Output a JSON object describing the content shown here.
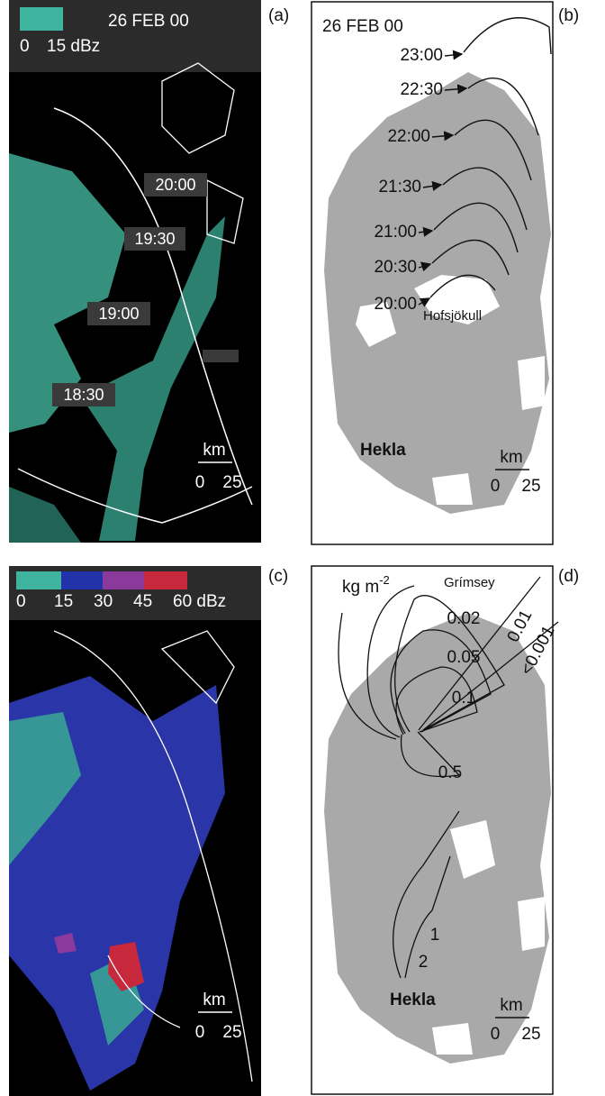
{
  "panels": [
    {
      "label": "(a)",
      "date": "26 FEB 00",
      "legend": [
        "0",
        "15 dBz"
      ],
      "times": [
        "20:00",
        "19:30",
        "19:00",
        "18:30"
      ],
      "scale": {
        "unit": "km",
        "ticks": [
          "0",
          "25"
        ]
      }
    },
    {
      "label": "(b)",
      "date": "26 FEB 00",
      "times": [
        "23:00",
        "22:30",
        "22:00",
        "21:30",
        "21:00",
        "20:30",
        "20:00"
      ],
      "places": [
        "Hofsjökull",
        "Hekla"
      ],
      "scale": {
        "unit": "km",
        "ticks": [
          "0",
          "25"
        ]
      }
    },
    {
      "label": "(c)",
      "legend": [
        "0",
        "15",
        "30",
        "45",
        "60 dBz"
      ],
      "scale": {
        "unit": "km",
        "ticks": [
          "0",
          "25"
        ]
      }
    },
    {
      "label": "(d)",
      "unit": {
        "text": "kg m",
        "superscript": "-2"
      },
      "places": [
        "Grímsey",
        "Hekla"
      ],
      "contours": [
        "0.02",
        "0.05",
        "0.1",
        "0.5",
        "1",
        "2",
        "0.01",
        "<0.001"
      ],
      "scale": {
        "unit": "km",
        "ticks": [
          "0",
          "25"
        ]
      }
    }
  ]
}
